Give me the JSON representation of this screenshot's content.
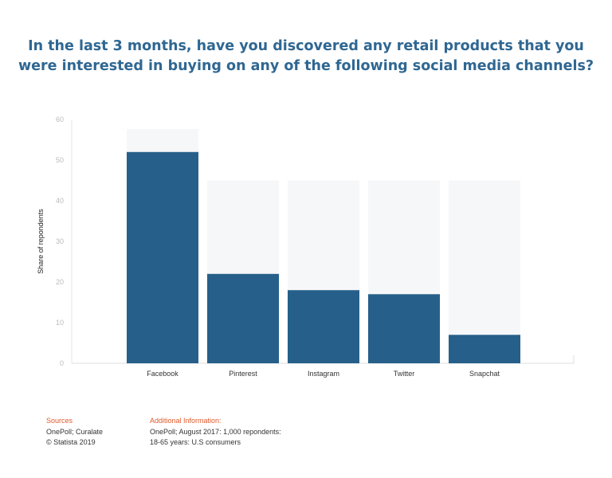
{
  "chart_data": {
    "type": "bar",
    "title_lines": [
      "In the last 3 months, have you discovered any retail products that you",
      "were interested in buying on any of the following social media channels?"
    ],
    "categories": [
      "Facebook",
      "Pinterest",
      "Instagram",
      "Twitter",
      "Snapchat"
    ],
    "values": [
      52,
      22,
      18,
      17,
      7
    ],
    "ylabel": "Share of repondents",
    "xlabel": "",
    "ylim": [
      0,
      60
    ],
    "yticks": [
      "0",
      "10",
      "20",
      "30",
      "40",
      "50",
      "60"
    ],
    "grid": false,
    "bar_color": "#26608a",
    "title_color": "#2f6792"
  },
  "footer": {
    "sources_heading": "Sources",
    "sources_line1": "OnePoll; Curalate",
    "sources_line2": "© Statista 2019",
    "info_heading": "Additional Information:",
    "info_line1": "OnePoll; August 2017: 1,000 repondents:",
    "info_line2": "18-65 years: U.S consumers",
    "heading_color": "#e05a2b"
  }
}
